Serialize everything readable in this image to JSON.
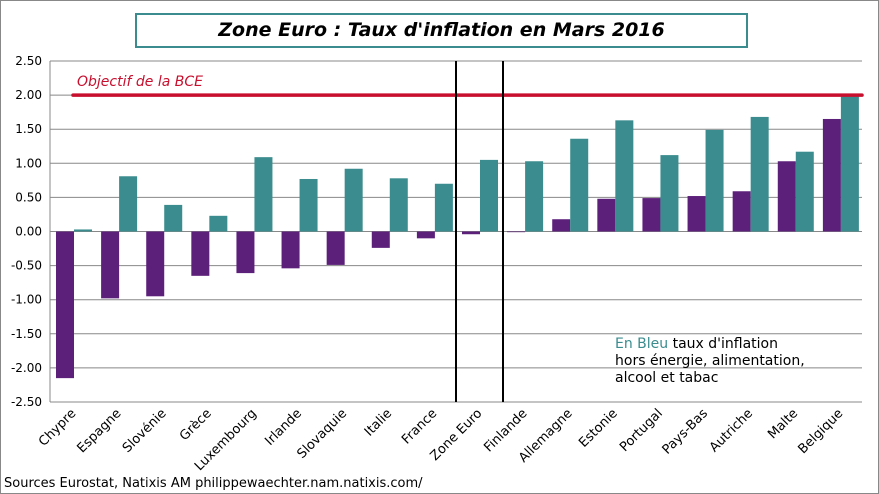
{
  "chart_data": {
    "type": "bar",
    "title": "Zone Euro : Taux d'inflation en Mars 2016",
    "categories": [
      "Chypre",
      "Espagne",
      "Slovénie",
      "Grèce",
      "Luxembourg",
      "Irlande",
      "Slovaquie",
      "Italie",
      "France",
      "Zone Euro",
      "Finlande",
      "Allemagne",
      "Estonie",
      "Portugal",
      "Pays-Bas",
      "Autriche",
      "Malte",
      "Belgique"
    ],
    "series": [
      {
        "values": [
          -2.15,
          -0.98,
          -0.95,
          -0.65,
          -0.61,
          -0.54,
          -0.49,
          -0.24,
          -0.1,
          -0.04,
          -0.01,
          0.18,
          0.48,
          0.49,
          0.52,
          0.59,
          1.03,
          1.65
        ],
        "color": "#5c1f7a"
      },
      {
        "values": [
          0.03,
          0.81,
          0.39,
          0.23,
          1.09,
          0.77,
          0.92,
          0.78,
          0.7,
          1.05,
          1.03,
          1.36,
          1.63,
          1.12,
          1.49,
          1.68,
          1.17,
          2.02
        ],
        "color": "#3a8c8e"
      }
    ],
    "ylim": [
      -2.5,
      2.5
    ],
    "yticks": [
      "2.50",
      "2.00",
      "1.50",
      "1.00",
      "0.50",
      "0.00",
      "-0.50",
      "-1.00",
      "-1.50",
      "-2.00",
      "-2.50"
    ],
    "grid": true,
    "reference_line": {
      "value": 2.0,
      "label": "Objectif de la BCE",
      "color": "#c8102e"
    },
    "legend": {
      "highlight": "En Bleu",
      "line1": "taux d'inflation",
      "line2": "hors énergie, alimentation,",
      "line3": "alcool  et tabac"
    },
    "source": "Sources Eurostat, Natixis  AM philippewaechter.nam.natixis.com/"
  }
}
